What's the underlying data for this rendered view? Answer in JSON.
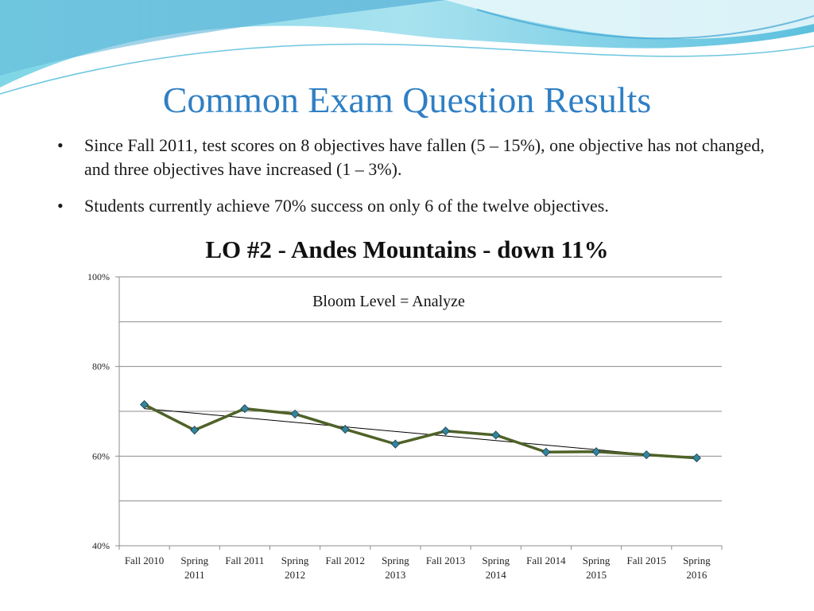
{
  "slide": {
    "title": "Common Exam Question Results",
    "bullets": [
      "Since Fall 2011, test scores on 8 objectives have fallen (5 – 15%), one objective has not changed, and three objectives have increased (1 – 3%).",
      "Students currently achieve 70% success on only 6 of the twelve objectives."
    ]
  },
  "chart_data": {
    "type": "line",
    "title": "LO #2 - Andes Mountains - down 11%",
    "annotation": "Bloom Level = Analyze",
    "categories": [
      "Fall 2010",
      "Spring 2011",
      "Fall 2011",
      "Spring 2012",
      "Fall 2012",
      "Spring 2013",
      "Fall 2013",
      "Spring 2014",
      "Fall 2014",
      "Spring 2015",
      "Fall 2015",
      "Spring 2016"
    ],
    "series": [
      {
        "values": [
          71.5,
          65.8,
          70.6,
          69.4,
          66.0,
          62.7,
          65.6,
          64.7,
          60.9,
          61.0,
          60.3,
          59.6
        ],
        "color": "#4f6228",
        "marker_color": "#31859c"
      }
    ],
    "trendline": {
      "from": 70.6,
      "to": 59.4,
      "color": "#000000"
    },
    "ylim": [
      40,
      100
    ],
    "y_ticks": [
      {
        "value": 40,
        "label": "40%"
      },
      {
        "value": 60,
        "label": "60%"
      },
      {
        "value": 80,
        "label": "80%"
      },
      {
        "value": 100,
        "label": "100%"
      }
    ],
    "y_gridlines": [
      50,
      60,
      70,
      80,
      90,
      100
    ],
    "grid": true,
    "legend": "none"
  }
}
